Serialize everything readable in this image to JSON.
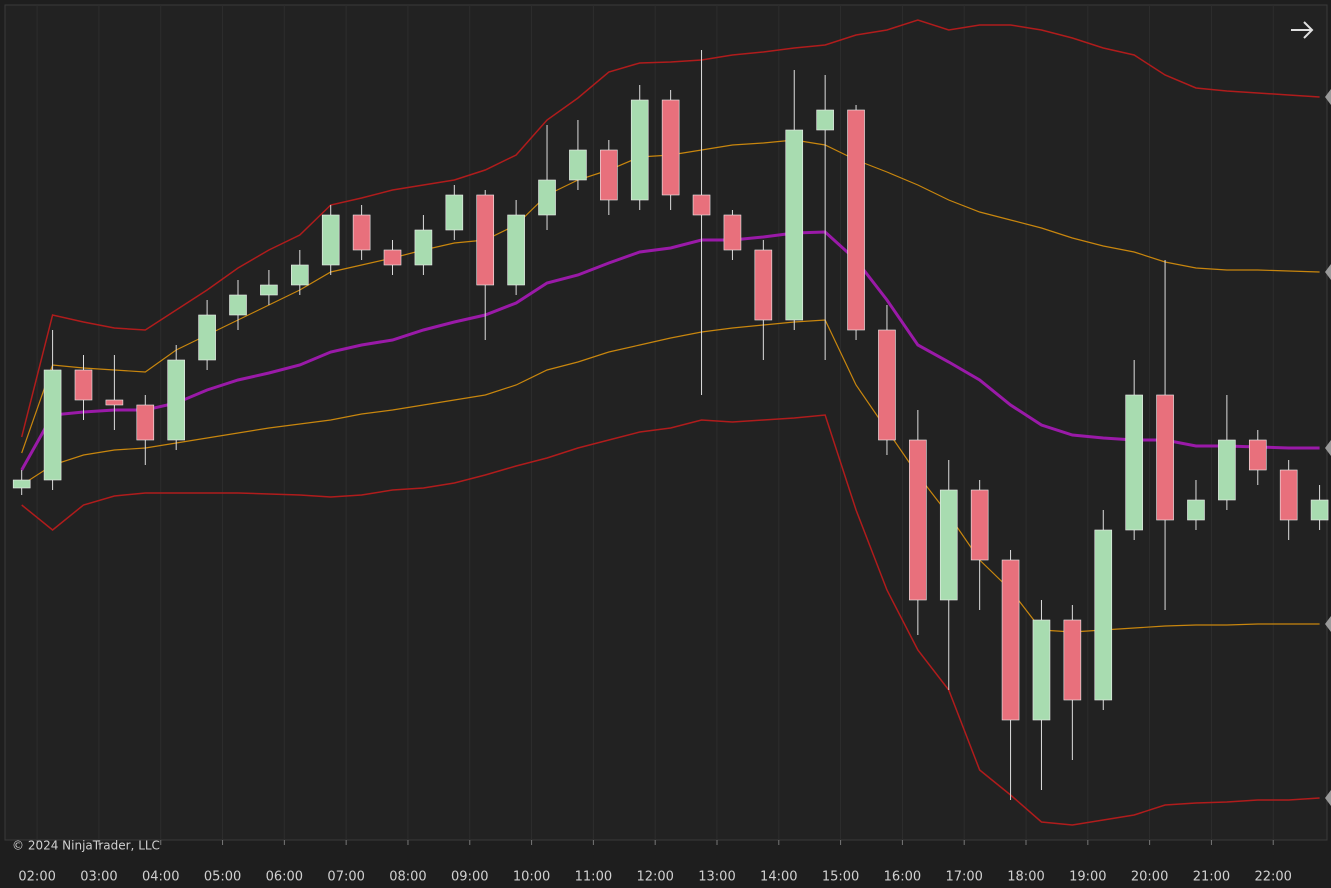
{
  "chart_data": {
    "type": "candlestick",
    "copyright": "© 2024 NinjaTrader, LLC",
    "xlim": [
      1.48,
      22.87
    ],
    "ylim": [
      0,
      835
    ],
    "xticks": [
      {
        "value": 2,
        "label": "02:00"
      },
      {
        "value": 3,
        "label": "03:00"
      },
      {
        "value": 4,
        "label": "04:00"
      },
      {
        "value": 5,
        "label": "05:00"
      },
      {
        "value": 6,
        "label": "06:00"
      },
      {
        "value": 7,
        "label": "07:00"
      },
      {
        "value": 8,
        "label": "08:00"
      },
      {
        "value": 9,
        "label": "09:00"
      },
      {
        "value": 10,
        "label": "10:00"
      },
      {
        "value": 11,
        "label": "11:00"
      },
      {
        "value": 12,
        "label": "12:00"
      },
      {
        "value": 13,
        "label": "13:00"
      },
      {
        "value": 14,
        "label": "14:00"
      },
      {
        "value": 15,
        "label": "15:00"
      },
      {
        "value": 16,
        "label": "16:00"
      },
      {
        "value": 17,
        "label": "17:00"
      },
      {
        "value": 18,
        "label": "18:00"
      },
      {
        "value": 19,
        "label": "19:00"
      },
      {
        "value": 20,
        "label": "20:00"
      },
      {
        "value": 21,
        "label": "21:00"
      },
      {
        "value": 22,
        "label": "22:00"
      }
    ],
    "grid": true,
    "up_color": "#a8dcb0",
    "down_color": "#e8707c",
    "x": [
      1.75,
      2.25,
      2.75,
      3.25,
      3.75,
      4.25,
      4.75,
      5.25,
      5.75,
      6.25,
      6.75,
      7.25,
      7.75,
      8.25,
      8.75,
      9.25,
      9.75,
      10.25,
      10.75,
      11.25,
      11.75,
      12.25,
      12.75,
      13.25,
      13.75,
      14.25,
      14.75,
      15.25,
      15.75,
      16.25,
      16.75,
      17.25,
      17.75,
      18.25,
      18.75,
      19.25,
      19.75,
      20.25,
      20.75,
      21.25,
      21.75,
      22.25,
      22.75
    ],
    "open": [
      352,
      360,
      470,
      440,
      435,
      400,
      480,
      525,
      545,
      555,
      575,
      625,
      590,
      575,
      610,
      645,
      555,
      625,
      660,
      690,
      640,
      740,
      645,
      625,
      590,
      520,
      710,
      730,
      510,
      400,
      240,
      350,
      280,
      120,
      220,
      140,
      310,
      445,
      320,
      340,
      400,
      370,
      320
    ],
    "high": [
      370,
      510,
      485,
      485,
      445,
      495,
      540,
      560,
      570,
      590,
      635,
      635,
      600,
      625,
      655,
      650,
      640,
      715,
      720,
      700,
      755,
      750,
      790,
      630,
      600,
      770,
      765,
      735,
      535,
      430,
      380,
      360,
      290,
      240,
      235,
      330,
      480,
      580,
      360,
      445,
      410,
      380,
      355
    ],
    "low": [
      345,
      350,
      420,
      410,
      375,
      390,
      470,
      510,
      535,
      545,
      565,
      580,
      565,
      565,
      600,
      500,
      545,
      610,
      650,
      625,
      630,
      630,
      445,
      580,
      480,
      510,
      480,
      500,
      385,
      205,
      150,
      230,
      40,
      50,
      80,
      130,
      300,
      230,
      310,
      330,
      355,
      300,
      310
    ],
    "close": [
      360,
      470,
      440,
      435,
      400,
      480,
      525,
      545,
      555,
      575,
      625,
      590,
      575,
      610,
      645,
      555,
      625,
      660,
      690,
      640,
      740,
      645,
      625,
      590,
      520,
      710,
      730,
      510,
      400,
      240,
      350,
      280,
      120,
      220,
      140,
      310,
      445,
      320,
      340,
      400,
      370,
      320,
      340
    ],
    "series": [
      {
        "color": "#b01c1c",
        "width": 1.5,
        "values": [
          403,
          525,
          518,
          512,
          510,
          530,
          550,
          572,
          590,
          605,
          635,
          642,
          650,
          655,
          660,
          670,
          685,
          720,
          742,
          768,
          777,
          778,
          780,
          785,
          788,
          792,
          795,
          805,
          810,
          820,
          810,
          815,
          815,
          810,
          802,
          792,
          785,
          765,
          752,
          749,
          747,
          745,
          743
        ]
      },
      {
        "color": "#c8860e",
        "width": 1.2,
        "values": [
          387,
          475,
          472,
          470,
          468,
          490,
          505,
          520,
          535,
          550,
          568,
          575,
          582,
          590,
          597,
          600,
          615,
          645,
          660,
          670,
          683,
          685,
          690,
          695,
          697,
          700,
          695,
          680,
          668,
          655,
          640,
          628,
          620,
          612,
          602,
          594,
          588,
          578,
          572,
          570,
          570,
          569,
          568
        ]
      },
      {
        "color": "#9a1aa8",
        "width": 3,
        "values": [
          370,
          425,
          428,
          430,
          430,
          437,
          450,
          460,
          467,
          475,
          488,
          495,
          500,
          510,
          518,
          525,
          537,
          557,
          565,
          577,
          588,
          592,
          600,
          600,
          603,
          607,
          608,
          580,
          540,
          495,
          478,
          460,
          435,
          415,
          405,
          402,
          400,
          400,
          394,
          394,
          393,
          392,
          392
        ]
      },
      {
        "color": "#c8860e",
        "width": 1.2,
        "values": [
          355,
          375,
          385,
          390,
          392,
          397,
          402,
          407,
          412,
          416,
          420,
          426,
          430,
          435,
          440,
          445,
          455,
          470,
          478,
          488,
          495,
          502,
          508,
          512,
          515,
          518,
          520,
          455,
          410,
          365,
          325,
          280,
          250,
          210,
          208,
          210,
          212,
          214,
          215,
          215,
          216,
          216,
          216
        ]
      },
      {
        "color": "#b01c1c",
        "width": 1.5,
        "values": [
          335,
          310,
          335,
          344,
          347,
          347,
          347,
          347,
          346,
          345,
          343,
          345,
          350,
          352,
          357,
          365,
          374,
          382,
          392,
          400,
          408,
          412,
          420,
          418,
          420,
          422,
          425,
          330,
          250,
          190,
          150,
          70,
          45,
          18,
          15,
          20,
          25,
          35,
          37,
          38,
          40,
          40,
          42
        ]
      }
    ]
  }
}
